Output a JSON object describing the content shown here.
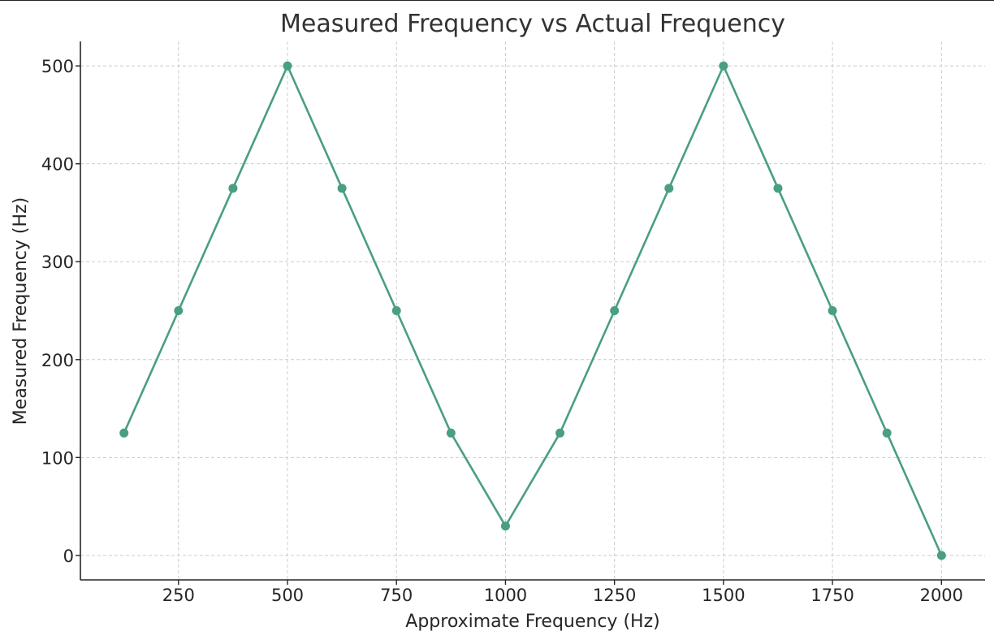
{
  "chart_data": {
    "type": "line",
    "title": "Measured Frequency vs Actual Frequency",
    "xlabel": "Approximate Frequency (Hz)",
    "ylabel": "Measured Frequency (Hz)",
    "xlim": [
      25,
      2100
    ],
    "ylim": [
      -25,
      525
    ],
    "xticks": [
      250,
      500,
      750,
      1000,
      1250,
      1500,
      1750,
      2000
    ],
    "yticks": [
      0,
      100,
      200,
      300,
      400,
      500
    ],
    "grid": true,
    "series": [
      {
        "name": "Measured Frequency",
        "color": "#4a9e82",
        "marker": "circle",
        "x": [
          125,
          250,
          375,
          500,
          625,
          750,
          875,
          1000,
          1125,
          1250,
          1375,
          1500,
          1625,
          1750,
          1875,
          2000
        ],
        "y": [
          125,
          250,
          375,
          500,
          375,
          250,
          125,
          30,
          125,
          250,
          375,
          500,
          375,
          250,
          125,
          0
        ]
      }
    ]
  }
}
